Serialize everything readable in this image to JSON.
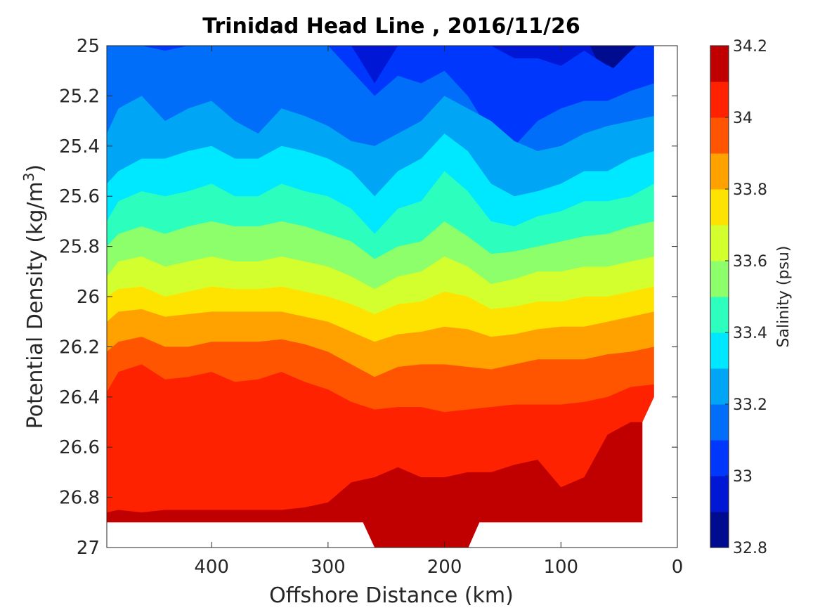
{
  "chart_data": {
    "type": "contour",
    "title": "Trinidad Head Line , 2016/11/26",
    "xlabel": "Offshore Distance (km)",
    "ylabel_main": "Potential Density (kg/m",
    "ylabel_sup": "3",
    "ylabel_end": ")",
    "colorbar_label": "Salinity (psu)",
    "xlim": [
      490,
      0
    ],
    "ylim": [
      25,
      27
    ],
    "x_reversed": true,
    "y_reversed": true,
    "x_ticks": [
      400,
      300,
      200,
      100,
      0
    ],
    "y_ticks": [
      25,
      25.2,
      25.4,
      25.6,
      25.8,
      26,
      26.2,
      26.4,
      26.6,
      26.8,
      27
    ],
    "y_tick_labels": [
      "25",
      "25.2",
      "25.4",
      "25.6",
      "25.8",
      "26",
      "26.2",
      "26.4",
      "26.6",
      "26.8",
      "27"
    ],
    "colorbar_ticks": [
      "34.2",
      "34",
      "33.8",
      "33.6",
      "33.4",
      "33.2",
      "33",
      "32.8"
    ],
    "colorbar_range": [
      32.8,
      34.2
    ],
    "levels": [
      32.8,
      32.9,
      33.0,
      33.1,
      33.2,
      33.3,
      33.4,
      33.5,
      33.6,
      33.7,
      33.8,
      33.9,
      34.0,
      34.1,
      34.2
    ],
    "level_colors": [
      "#000c8f",
      "#0018d6",
      "#0037fc",
      "#006ef9",
      "#00a5f6",
      "#00e8ff",
      "#2cffbd",
      "#8cff6a",
      "#d2ff2d",
      "#ffe300",
      "#ffa200",
      "#ff5400",
      "#fe2200",
      "#c00000"
    ],
    "contour_depths": [
      {
        "level": 33.0,
        "x": [
          490,
          480,
          460,
          440,
          420,
          400,
          380,
          360,
          340,
          320,
          300,
          280,
          260,
          240,
          220,
          200,
          180,
          160,
          140,
          120,
          100,
          80,
          60,
          40,
          20
        ],
        "y": [
          25.0,
          25.0,
          25.0,
          25.0,
          25.0,
          25.0,
          25.0,
          25.0,
          25.0,
          25.0,
          25.0,
          25.0,
          25.15,
          25.0,
          25.0,
          25.0,
          25.0,
          25.0,
          25.05,
          25.05,
          25.08,
          25.02,
          25.08,
          25.0,
          25.0
        ]
      },
      {
        "level": 33.1,
        "x": [
          490,
          480,
          460,
          440,
          420,
          400,
          380,
          360,
          340,
          320,
          300,
          280,
          260,
          240,
          220,
          200,
          180,
          160,
          140,
          120,
          100,
          80,
          60,
          40,
          20
        ],
        "y": [
          25.0,
          25.0,
          25.0,
          25.02,
          25.0,
          25.0,
          25.0,
          25.0,
          25.0,
          25.0,
          25.0,
          25.1,
          25.2,
          25.12,
          25.15,
          25.1,
          25.2,
          25.35,
          25.4,
          25.3,
          25.25,
          25.22,
          25.22,
          25.18,
          25.15
        ]
      },
      {
        "level": 33.2,
        "x": [
          490,
          480,
          460,
          440,
          420,
          400,
          380,
          360,
          340,
          320,
          300,
          280,
          260,
          240,
          220,
          200,
          180,
          160,
          140,
          120,
          100,
          80,
          60,
          40,
          20
        ],
        "y": [
          25.35,
          25.25,
          25.2,
          25.3,
          25.25,
          25.22,
          25.3,
          25.35,
          25.25,
          25.28,
          25.32,
          25.38,
          25.4,
          25.35,
          25.3,
          25.2,
          25.25,
          25.3,
          25.38,
          25.42,
          25.4,
          25.35,
          25.32,
          25.3,
          25.28
        ]
      },
      {
        "level": 33.3,
        "x": [
          490,
          480,
          460,
          440,
          420,
          400,
          380,
          360,
          340,
          320,
          300,
          280,
          260,
          240,
          220,
          200,
          180,
          160,
          140,
          120,
          100,
          80,
          60,
          40,
          20
        ],
        "y": [
          25.55,
          25.5,
          25.45,
          25.45,
          25.42,
          25.4,
          25.45,
          25.45,
          25.4,
          25.42,
          25.45,
          25.5,
          25.6,
          25.5,
          25.45,
          25.35,
          25.42,
          25.55,
          25.6,
          25.58,
          25.55,
          25.5,
          25.5,
          25.45,
          25.42
        ]
      },
      {
        "level": 33.4,
        "x": [
          490,
          480,
          460,
          440,
          420,
          400,
          380,
          360,
          340,
          320,
          300,
          280,
          260,
          240,
          220,
          200,
          180,
          160,
          140,
          120,
          100,
          80,
          60,
          40,
          20
        ],
        "y": [
          25.7,
          25.62,
          25.58,
          25.6,
          25.58,
          25.55,
          25.6,
          25.6,
          25.55,
          25.58,
          25.6,
          25.65,
          25.75,
          25.65,
          25.62,
          25.5,
          25.58,
          25.7,
          25.72,
          25.68,
          25.66,
          25.62,
          25.62,
          25.6,
          25.55
        ]
      },
      {
        "level": 33.5,
        "x": [
          490,
          480,
          460,
          440,
          420,
          400,
          380,
          360,
          340,
          320,
          300,
          280,
          260,
          240,
          220,
          200,
          180,
          160,
          140,
          120,
          100,
          80,
          60,
          40,
          20
        ],
        "y": [
          25.8,
          25.75,
          25.72,
          25.75,
          25.72,
          25.7,
          25.72,
          25.72,
          25.7,
          25.72,
          25.75,
          25.78,
          25.85,
          25.8,
          25.78,
          25.7,
          25.76,
          25.83,
          25.82,
          25.8,
          25.78,
          25.76,
          25.75,
          25.72,
          25.7
        ]
      },
      {
        "level": 33.6,
        "x": [
          490,
          480,
          460,
          440,
          420,
          400,
          380,
          360,
          340,
          320,
          300,
          280,
          260,
          240,
          220,
          200,
          180,
          160,
          140,
          120,
          100,
          80,
          60,
          40,
          20
        ],
        "y": [
          25.92,
          25.86,
          25.84,
          25.88,
          25.86,
          25.84,
          25.86,
          25.86,
          25.84,
          25.86,
          25.88,
          25.92,
          25.97,
          25.92,
          25.9,
          25.84,
          25.88,
          25.95,
          25.93,
          25.9,
          25.9,
          25.88,
          25.88,
          25.86,
          25.84
        ]
      },
      {
        "level": 33.7,
        "x": [
          490,
          480,
          460,
          440,
          420,
          400,
          380,
          360,
          340,
          320,
          300,
          280,
          260,
          240,
          220,
          200,
          180,
          160,
          140,
          120,
          100,
          80,
          60,
          40,
          20
        ],
        "y": [
          26.0,
          25.97,
          25.96,
          26.0,
          25.98,
          25.96,
          25.97,
          25.97,
          25.96,
          25.98,
          26.0,
          26.03,
          26.07,
          26.03,
          26.02,
          25.98,
          26.0,
          26.05,
          26.04,
          26.02,
          26.02,
          26.0,
          26.0,
          25.98,
          25.96
        ]
      },
      {
        "level": 33.8,
        "x": [
          490,
          480,
          460,
          440,
          420,
          400,
          380,
          360,
          340,
          320,
          300,
          280,
          260,
          240,
          220,
          200,
          180,
          160,
          140,
          120,
          100,
          80,
          60,
          40,
          20
        ],
        "y": [
          26.1,
          26.06,
          26.05,
          26.08,
          26.07,
          26.06,
          26.06,
          26.06,
          26.06,
          26.08,
          26.1,
          26.14,
          26.18,
          26.15,
          26.14,
          26.12,
          26.13,
          26.16,
          26.15,
          26.13,
          26.12,
          26.12,
          26.1,
          26.08,
          26.06
        ]
      },
      {
        "level": 33.9,
        "x": [
          490,
          480,
          460,
          440,
          420,
          400,
          380,
          360,
          340,
          320,
          300,
          280,
          260,
          240,
          220,
          200,
          180,
          160,
          140,
          120,
          100,
          80,
          60,
          40,
          20
        ],
        "y": [
          26.22,
          26.18,
          26.16,
          26.2,
          26.2,
          26.18,
          26.18,
          26.18,
          26.17,
          26.19,
          26.22,
          26.27,
          26.32,
          26.28,
          26.27,
          26.27,
          26.28,
          26.29,
          26.27,
          26.25,
          26.25,
          26.25,
          26.23,
          26.22,
          26.2
        ]
      },
      {
        "level": 34.0,
        "x": [
          490,
          480,
          460,
          440,
          420,
          400,
          380,
          360,
          340,
          320,
          300,
          280,
          260,
          240,
          220,
          200,
          180,
          160,
          140,
          120,
          100,
          80,
          60,
          40,
          20
        ],
        "y": [
          26.38,
          26.3,
          26.27,
          26.33,
          26.32,
          26.3,
          26.34,
          26.33,
          26.3,
          26.34,
          26.37,
          26.42,
          26.45,
          26.44,
          26.44,
          26.46,
          26.45,
          26.44,
          26.43,
          26.43,
          26.43,
          26.42,
          26.4,
          26.36,
          26.35
        ]
      },
      {
        "level": 34.1,
        "x": [
          490,
          480,
          460,
          440,
          420,
          400,
          380,
          360,
          340,
          320,
          300,
          280,
          260,
          240,
          220,
          200,
          180,
          160,
          140,
          120,
          100,
          80,
          60,
          40,
          20
        ],
        "y": [
          26.86,
          26.85,
          26.86,
          26.85,
          26.85,
          26.85,
          26.85,
          26.85,
          26.85,
          26.84,
          26.82,
          26.74,
          26.72,
          26.68,
          26.72,
          26.72,
          26.7,
          26.7,
          26.67,
          26.65,
          26.76,
          26.72,
          26.55,
          26.5,
          26.5
        ]
      },
      {
        "level": 34.2,
        "x": [
          260,
          240,
          220,
          200,
          180
        ],
        "y": [
          26.92,
          26.91,
          26.95,
          26.93,
          26.95
        ]
      }
    ]
  }
}
